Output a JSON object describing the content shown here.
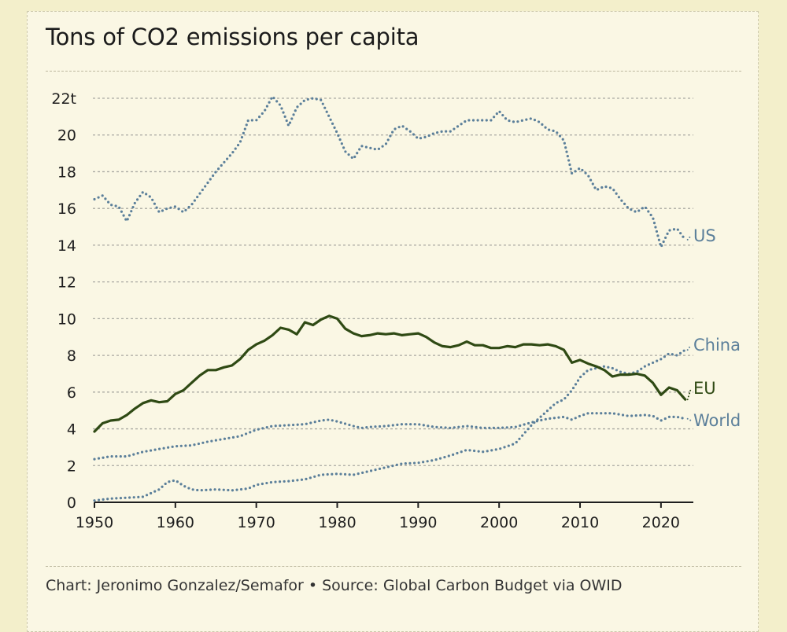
{
  "chart_data": {
    "type": "line",
    "title": "Tons of CO2 emissions per capita",
    "xlabel": "",
    "ylabel": "",
    "xlim": [
      1950,
      2024
    ],
    "ylim": [
      0,
      22
    ],
    "x_ticks": [
      1950,
      1960,
      1970,
      1980,
      1990,
      2000,
      2010,
      2020
    ],
    "y_ticks": [
      {
        "value": 0,
        "label": "0"
      },
      {
        "value": 2,
        "label": "2"
      },
      {
        "value": 4,
        "label": "4"
      },
      {
        "value": 6,
        "label": "6"
      },
      {
        "value": 8,
        "label": "8"
      },
      {
        "value": 10,
        "label": "10"
      },
      {
        "value": 12,
        "label": "12"
      },
      {
        "value": 14,
        "label": "14"
      },
      {
        "value": 16,
        "label": "16"
      },
      {
        "value": 18,
        "label": "18"
      },
      {
        "value": 20,
        "label": "20"
      },
      {
        "value": 22,
        "label": "22t"
      }
    ],
    "grid": true,
    "series": [
      {
        "name": "US",
        "label": "US",
        "color": "#5b7f9a",
        "style": "dotted",
        "points": [
          [
            1950,
            16.5
          ],
          [
            1951,
            16.7
          ],
          [
            1952,
            16.2
          ],
          [
            1953,
            16.1
          ],
          [
            1954,
            15.3
          ],
          [
            1955,
            16.3
          ],
          [
            1956,
            16.9
          ],
          [
            1957,
            16.6
          ],
          [
            1958,
            15.8
          ],
          [
            1959,
            16.0
          ],
          [
            1960,
            16.1
          ],
          [
            1961,
            15.8
          ],
          [
            1962,
            16.2
          ],
          [
            1963,
            16.8
          ],
          [
            1964,
            17.4
          ],
          [
            1965,
            18.0
          ],
          [
            1966,
            18.5
          ],
          [
            1967,
            19.0
          ],
          [
            1968,
            19.6
          ],
          [
            1969,
            20.8
          ],
          [
            1970,
            20.8
          ],
          [
            1971,
            21.3
          ],
          [
            1972,
            22.1
          ],
          [
            1973,
            21.6
          ],
          [
            1974,
            20.5
          ],
          [
            1975,
            21.5
          ],
          [
            1976,
            21.9
          ],
          [
            1977,
            22.0
          ],
          [
            1978,
            21.9
          ],
          [
            1979,
            21.0
          ],
          [
            1980,
            20.1
          ],
          [
            1981,
            19.1
          ],
          [
            1982,
            18.7
          ],
          [
            1983,
            19.4
          ],
          [
            1984,
            19.3
          ],
          [
            1985,
            19.2
          ],
          [
            1986,
            19.5
          ],
          [
            1987,
            20.3
          ],
          [
            1988,
            20.5
          ],
          [
            1989,
            20.2
          ],
          [
            1990,
            19.8
          ],
          [
            1991,
            19.9
          ],
          [
            1992,
            20.1
          ],
          [
            1993,
            20.2
          ],
          [
            1994,
            20.2
          ],
          [
            1995,
            20.5
          ],
          [
            1996,
            20.8
          ],
          [
            1997,
            20.8
          ],
          [
            1998,
            20.8
          ],
          [
            1999,
            20.8
          ],
          [
            2000,
            21.3
          ],
          [
            2001,
            20.8
          ],
          [
            2002,
            20.7
          ],
          [
            2003,
            20.8
          ],
          [
            2004,
            20.9
          ],
          [
            2005,
            20.7
          ],
          [
            2006,
            20.3
          ],
          [
            2007,
            20.2
          ],
          [
            2008,
            19.7
          ],
          [
            2009,
            17.9
          ],
          [
            2010,
            18.2
          ],
          [
            2011,
            17.8
          ],
          [
            2012,
            17.0
          ],
          [
            2013,
            17.2
          ],
          [
            2014,
            17.1
          ],
          [
            2015,
            16.5
          ],
          [
            2016,
            16.0
          ],
          [
            2017,
            15.8
          ],
          [
            2018,
            16.1
          ],
          [
            2019,
            15.5
          ],
          [
            2020,
            13.9
          ],
          [
            2021,
            14.8
          ],
          [
            2022,
            14.9
          ],
          [
            2023,
            14.3
          ]
        ]
      },
      {
        "name": "China",
        "label": "China",
        "color": "#5b7f9a",
        "style": "dotted",
        "points": [
          [
            1950,
            0.1
          ],
          [
            1952,
            0.2
          ],
          [
            1954,
            0.25
          ],
          [
            1956,
            0.3
          ],
          [
            1958,
            0.7
          ],
          [
            1959,
            1.1
          ],
          [
            1960,
            1.2
          ],
          [
            1961,
            0.9
          ],
          [
            1962,
            0.7
          ],
          [
            1963,
            0.65
          ],
          [
            1965,
            0.7
          ],
          [
            1967,
            0.65
          ],
          [
            1969,
            0.75
          ],
          [
            1970,
            0.95
          ],
          [
            1972,
            1.1
          ],
          [
            1974,
            1.15
          ],
          [
            1976,
            1.25
          ],
          [
            1978,
            1.5
          ],
          [
            1980,
            1.55
          ],
          [
            1982,
            1.5
          ],
          [
            1984,
            1.7
          ],
          [
            1986,
            1.9
          ],
          [
            1988,
            2.1
          ],
          [
            1990,
            2.15
          ],
          [
            1992,
            2.3
          ],
          [
            1994,
            2.55
          ],
          [
            1996,
            2.85
          ],
          [
            1998,
            2.75
          ],
          [
            2000,
            2.9
          ],
          [
            2002,
            3.2
          ],
          [
            2003,
            3.7
          ],
          [
            2004,
            4.2
          ],
          [
            2005,
            4.6
          ],
          [
            2006,
            5.0
          ],
          [
            2007,
            5.4
          ],
          [
            2008,
            5.6
          ],
          [
            2009,
            6.1
          ],
          [
            2010,
            6.8
          ],
          [
            2011,
            7.2
          ],
          [
            2012,
            7.3
          ],
          [
            2013,
            7.4
          ],
          [
            2014,
            7.3
          ],
          [
            2015,
            7.1
          ],
          [
            2016,
            7.0
          ],
          [
            2017,
            7.1
          ],
          [
            2018,
            7.4
          ],
          [
            2019,
            7.6
          ],
          [
            2020,
            7.8
          ],
          [
            2021,
            8.1
          ],
          [
            2022,
            8.0
          ],
          [
            2023,
            8.3
          ]
        ]
      },
      {
        "name": "EU",
        "label": "EU",
        "color": "#2f4a14",
        "style": "solid",
        "points": [
          [
            1950,
            3.85
          ],
          [
            1951,
            4.3
          ],
          [
            1952,
            4.45
          ],
          [
            1953,
            4.5
          ],
          [
            1954,
            4.75
          ],
          [
            1955,
            5.1
          ],
          [
            1956,
            5.4
          ],
          [
            1957,
            5.55
          ],
          [
            1958,
            5.45
          ],
          [
            1959,
            5.5
          ],
          [
            1960,
            5.9
          ],
          [
            1961,
            6.1
          ],
          [
            1962,
            6.5
          ],
          [
            1963,
            6.9
          ],
          [
            1964,
            7.2
          ],
          [
            1965,
            7.2
          ],
          [
            1966,
            7.35
          ],
          [
            1967,
            7.45
          ],
          [
            1968,
            7.8
          ],
          [
            1969,
            8.3
          ],
          [
            1970,
            8.6
          ],
          [
            1971,
            8.8
          ],
          [
            1972,
            9.1
          ],
          [
            1973,
            9.5
          ],
          [
            1974,
            9.4
          ],
          [
            1975,
            9.15
          ],
          [
            1976,
            9.8
          ],
          [
            1977,
            9.65
          ],
          [
            1978,
            9.95
          ],
          [
            1979,
            10.15
          ],
          [
            1980,
            10.0
          ],
          [
            1981,
            9.45
          ],
          [
            1982,
            9.2
          ],
          [
            1983,
            9.05
          ],
          [
            1984,
            9.1
          ],
          [
            1985,
            9.2
          ],
          [
            1986,
            9.15
          ],
          [
            1987,
            9.2
          ],
          [
            1988,
            9.1
          ],
          [
            1989,
            9.15
          ],
          [
            1990,
            9.2
          ],
          [
            1991,
            9.0
          ],
          [
            1992,
            8.7
          ],
          [
            1993,
            8.5
          ],
          [
            1994,
            8.45
          ],
          [
            1995,
            8.55
          ],
          [
            1996,
            8.75
          ],
          [
            1997,
            8.55
          ],
          [
            1998,
            8.55
          ],
          [
            1999,
            8.4
          ],
          [
            2000,
            8.4
          ],
          [
            2001,
            8.5
          ],
          [
            2002,
            8.45
          ],
          [
            2003,
            8.6
          ],
          [
            2004,
            8.6
          ],
          [
            2005,
            8.55
          ],
          [
            2006,
            8.6
          ],
          [
            2007,
            8.5
          ],
          [
            2008,
            8.3
          ],
          [
            2009,
            7.6
          ],
          [
            2010,
            7.75
          ],
          [
            2011,
            7.55
          ],
          [
            2012,
            7.4
          ],
          [
            2013,
            7.2
          ],
          [
            2014,
            6.85
          ],
          [
            2015,
            6.95
          ],
          [
            2016,
            6.95
          ],
          [
            2017,
            7.0
          ],
          [
            2018,
            6.9
          ],
          [
            2019,
            6.5
          ],
          [
            2020,
            5.85
          ],
          [
            2021,
            6.25
          ],
          [
            2022,
            6.1
          ],
          [
            2023,
            5.6
          ]
        ]
      },
      {
        "name": "World",
        "label": "World",
        "color": "#5b7f9a",
        "style": "dotted",
        "points": [
          [
            1950,
            2.35
          ],
          [
            1952,
            2.5
          ],
          [
            1954,
            2.5
          ],
          [
            1956,
            2.75
          ],
          [
            1958,
            2.9
          ],
          [
            1960,
            3.05
          ],
          [
            1962,
            3.1
          ],
          [
            1964,
            3.3
          ],
          [
            1966,
            3.45
          ],
          [
            1968,
            3.6
          ],
          [
            1970,
            3.95
          ],
          [
            1972,
            4.15
          ],
          [
            1974,
            4.2
          ],
          [
            1976,
            4.25
          ],
          [
            1978,
            4.45
          ],
          [
            1979,
            4.5
          ],
          [
            1980,
            4.4
          ],
          [
            1982,
            4.15
          ],
          [
            1983,
            4.05
          ],
          [
            1984,
            4.1
          ],
          [
            1986,
            4.15
          ],
          [
            1988,
            4.25
          ],
          [
            1990,
            4.25
          ],
          [
            1992,
            4.1
          ],
          [
            1994,
            4.05
          ],
          [
            1996,
            4.15
          ],
          [
            1998,
            4.05
          ],
          [
            2000,
            4.05
          ],
          [
            2002,
            4.1
          ],
          [
            2004,
            4.35
          ],
          [
            2006,
            4.55
          ],
          [
            2008,
            4.65
          ],
          [
            2009,
            4.5
          ],
          [
            2010,
            4.7
          ],
          [
            2011,
            4.85
          ],
          [
            2012,
            4.85
          ],
          [
            2014,
            4.85
          ],
          [
            2016,
            4.7
          ],
          [
            2018,
            4.75
          ],
          [
            2019,
            4.7
          ],
          [
            2020,
            4.45
          ],
          [
            2021,
            4.65
          ],
          [
            2022,
            4.65
          ],
          [
            2023,
            4.55
          ]
        ]
      }
    ],
    "annotations": {
      "footer": "Chart: Jeronimo Gonzalez/Semafor • Source: Global Carbon Budget via OWID"
    }
  }
}
